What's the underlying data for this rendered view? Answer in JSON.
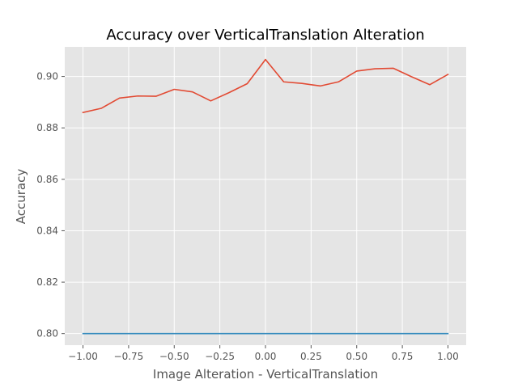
{
  "chart_data": {
    "type": "line",
    "title": "Accuracy over VerticalTranslation Alteration",
    "xlabel": "Image Alteration - VerticalTranslation",
    "ylabel": "Accuracy",
    "xlim": [
      -1.1,
      1.1
    ],
    "ylim": [
      0.7955,
      0.9115
    ],
    "xticks": [
      -1.0,
      -0.75,
      -0.5,
      -0.25,
      0.0,
      0.25,
      0.5,
      0.75,
      1.0
    ],
    "xtick_labels": [
      "−1.00",
      "−0.75",
      "−0.50",
      "−0.25",
      "0.00",
      "0.25",
      "0.50",
      "0.75",
      "1.00"
    ],
    "yticks": [
      0.8,
      0.82,
      0.84,
      0.86,
      0.88,
      0.9
    ],
    "ytick_labels": [
      "0.80",
      "0.82",
      "0.84",
      "0.86",
      "0.88",
      "0.90"
    ],
    "grid": true,
    "x": [
      -1.0,
      -0.9,
      -0.8,
      -0.7,
      -0.6,
      -0.5,
      -0.4,
      -0.3,
      -0.2,
      -0.1,
      0.0,
      0.1,
      0.2,
      0.3,
      0.4,
      0.5,
      0.6,
      0.7,
      0.8,
      0.9,
      1.0
    ],
    "series": [
      {
        "color": "#E24A33",
        "values": [
          0.886,
          0.8876,
          0.8916,
          0.8924,
          0.8923,
          0.895,
          0.894,
          0.8905,
          0.8937,
          0.8972,
          0.9066,
          0.8979,
          0.8973,
          0.8963,
          0.8979,
          0.9021,
          0.903,
          0.9032,
          0.8999,
          0.8968,
          0.9008
        ]
      },
      {
        "color": "#348ABD",
        "values": [
          0.8,
          0.8,
          0.8,
          0.8,
          0.8,
          0.8,
          0.8,
          0.8,
          0.8,
          0.8,
          0.8,
          0.8,
          0.8,
          0.8,
          0.8,
          0.8,
          0.8,
          0.8,
          0.8,
          0.8,
          0.8
        ]
      }
    ]
  }
}
